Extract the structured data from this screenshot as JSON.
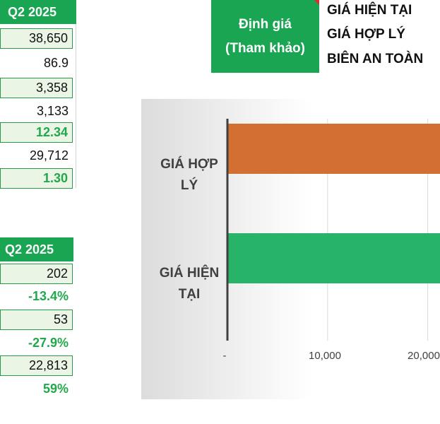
{
  "table1": {
    "header": "Q2 2025",
    "rows": [
      {
        "value": "38,650"
      },
      {
        "value": "86.9"
      },
      {
        "value": "3,358"
      },
      {
        "value": "3,133"
      },
      {
        "value": "12.34"
      },
      {
        "value": "29,712"
      },
      {
        "value": "1.30"
      }
    ]
  },
  "table2": {
    "header": "Q2 2025",
    "rows": [
      {
        "value": "202"
      },
      {
        "value": "-13.4%"
      },
      {
        "value": "53"
      },
      {
        "value": "-27.9%"
      },
      {
        "value": "22,813"
      },
      {
        "value": "59%"
      }
    ]
  },
  "valuation": {
    "box_line1": "Định giá",
    "box_line2": "(Tham khảo)",
    "labels": [
      "GIÁ HIỆN TẠI",
      "GIÁ HỢP LÝ",
      "BIÊN AN TOÀN"
    ]
  },
  "colors": {
    "brand_green": "#1aa552",
    "value_green": "#21a84a",
    "bar_orange": "#d36f32",
    "bar_green": "#27b468",
    "shade": "#ebf5e6"
  },
  "chart_data": {
    "type": "bar",
    "orientation": "horizontal",
    "categories": [
      "GIÁ HỢP LÝ",
      "GIÁ HIỆN TẠI"
    ],
    "category_lines": [
      [
        "GIÁ HỢP",
        "LÝ"
      ],
      [
        "GIÁ HIỆN",
        "TẠI"
      ]
    ],
    "values": [
      null,
      null
    ],
    "bar_colors": [
      "#d36f32",
      "#27b468"
    ],
    "x_ticks": [
      "-",
      "10,000",
      "20,000"
    ],
    "x_tick_values": [
      0,
      10000,
      20000
    ],
    "xlim": [
      0,
      28000
    ],
    "title": "",
    "xlabel": "",
    "ylabel": "",
    "grid": true,
    "legend": "none"
  }
}
